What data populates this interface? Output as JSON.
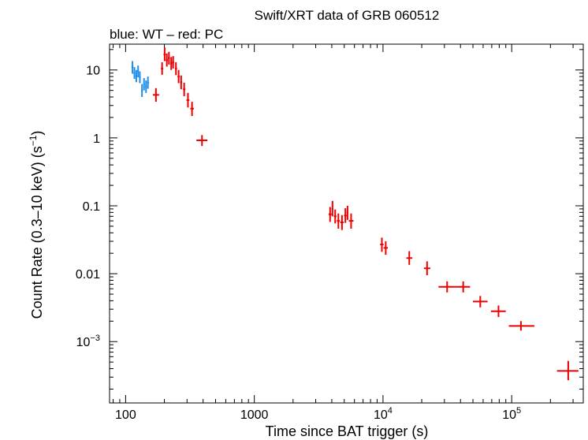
{
  "chart_data": {
    "type": "scatter",
    "title": "Swift/XRT data of GRB 060512",
    "subtitle": "blue: WT – red: PC",
    "xlabel": "Time since BAT trigger (s)",
    "ylabel": "Count Rate (0.3–10 keV) (s",
    "ylabel_sup": "−1",
    "ylabel_end": ")",
    "xscale": "log",
    "yscale": "log",
    "xlim": [
      75,
      360000
    ],
    "ylim": [
      0.000125,
      24
    ],
    "x_ticks": [
      {
        "value": 100,
        "label": "100"
      },
      {
        "value": 1000,
        "label": "1000"
      },
      {
        "value": 10000,
        "base": "10",
        "exp": "4"
      },
      {
        "value": 100000,
        "base": "10",
        "exp": "5"
      }
    ],
    "y_ticks": [
      {
        "value": 10,
        "label": "10"
      },
      {
        "value": 1,
        "label": "1"
      },
      {
        "value": 0.1,
        "label": "0.1"
      },
      {
        "value": 0.01,
        "label": "0.01"
      },
      {
        "value": 0.001,
        "base": "10",
        "exp": "−3"
      }
    ],
    "colors": {
      "WT": "#1f8fea",
      "PC": "#ee0000",
      "axes": "#000000"
    },
    "series": [
      {
        "name": "WT",
        "points": [
          {
            "x": 113,
            "xlo": 111,
            "xhi": 115,
            "y": 11.0,
            "ylo": 8.8,
            "yhi": 13.5
          },
          {
            "x": 117,
            "xlo": 115,
            "xhi": 119,
            "y": 9.0,
            "ylo": 7.4,
            "yhi": 11.0
          },
          {
            "x": 121,
            "xlo": 119,
            "xhi": 123,
            "y": 8.2,
            "ylo": 6.6,
            "yhi": 10.0
          },
          {
            "x": 125,
            "xlo": 123,
            "xhi": 127,
            "y": 9.6,
            "ylo": 7.8,
            "yhi": 11.6
          },
          {
            "x": 129,
            "xlo": 127,
            "xhi": 131,
            "y": 7.8,
            "ylo": 6.4,
            "yhi": 9.5
          },
          {
            "x": 134,
            "xlo": 132,
            "xhi": 136,
            "y": 5.0,
            "ylo": 4.0,
            "yhi": 6.2
          },
          {
            "x": 139,
            "xlo": 137,
            "xhi": 141,
            "y": 6.2,
            "ylo": 5.0,
            "yhi": 7.6
          },
          {
            "x": 144,
            "xlo": 142,
            "xhi": 146,
            "y": 5.7,
            "ylo": 4.6,
            "yhi": 7.0
          },
          {
            "x": 149,
            "xlo": 147,
            "xhi": 152,
            "y": 6.5,
            "ylo": 5.3,
            "yhi": 8.0
          }
        ]
      },
      {
        "name": "PC",
        "points": [
          {
            "x": 172,
            "xlo": 163,
            "xhi": 182,
            "y": 4.3,
            "ylo": 3.4,
            "yhi": 5.4
          },
          {
            "x": 192,
            "xlo": 188,
            "xhi": 196,
            "y": 10.5,
            "ylo": 8.5,
            "yhi": 13.0
          },
          {
            "x": 201,
            "xlo": 197,
            "xhi": 205,
            "y": 17.0,
            "ylo": 13.5,
            "yhi": 21.5
          },
          {
            "x": 209,
            "xlo": 205,
            "xhi": 213,
            "y": 14.0,
            "ylo": 11.2,
            "yhi": 17.5
          },
          {
            "x": 217,
            "xlo": 213,
            "xhi": 221,
            "y": 15.0,
            "ylo": 12.0,
            "yhi": 18.5
          },
          {
            "x": 226,
            "xlo": 222,
            "xhi": 230,
            "y": 12.5,
            "ylo": 10.0,
            "yhi": 15.5
          },
          {
            "x": 234,
            "xlo": 230,
            "xhi": 238,
            "y": 13.0,
            "ylo": 10.5,
            "yhi": 16.0
          },
          {
            "x": 246,
            "xlo": 242,
            "xhi": 251,
            "y": 10.5,
            "ylo": 8.4,
            "yhi": 13.0
          },
          {
            "x": 258,
            "xlo": 253,
            "xhi": 263,
            "y": 8.0,
            "ylo": 6.4,
            "yhi": 10.0
          },
          {
            "x": 270,
            "xlo": 265,
            "xhi": 275,
            "y": 6.6,
            "ylo": 5.2,
            "yhi": 8.3
          },
          {
            "x": 285,
            "xlo": 279,
            "xhi": 291,
            "y": 5.2,
            "ylo": 4.1,
            "yhi": 6.5
          },
          {
            "x": 305,
            "xlo": 297,
            "xhi": 313,
            "y": 3.6,
            "ylo": 2.8,
            "yhi": 4.6
          },
          {
            "x": 328,
            "xlo": 318,
            "xhi": 339,
            "y": 2.7,
            "ylo": 2.1,
            "yhi": 3.4
          },
          {
            "x": 392,
            "xlo": 355,
            "xhi": 432,
            "y": 0.92,
            "ylo": 0.76,
            "yhi": 1.1
          },
          {
            "x": 3880,
            "xlo": 3780,
            "xhi": 3990,
            "y": 0.075,
            "ylo": 0.058,
            "yhi": 0.096
          },
          {
            "x": 4050,
            "xlo": 3990,
            "xhi": 4110,
            "y": 0.09,
            "ylo": 0.07,
            "yhi": 0.118
          },
          {
            "x": 4250,
            "xlo": 4150,
            "xhi": 4350,
            "y": 0.07,
            "ylo": 0.055,
            "yhi": 0.088
          },
          {
            "x": 4500,
            "xlo": 4380,
            "xhi": 4620,
            "y": 0.06,
            "ylo": 0.046,
            "yhi": 0.077
          },
          {
            "x": 4800,
            "xlo": 4650,
            "xhi": 4950,
            "y": 0.057,
            "ylo": 0.044,
            "yhi": 0.073
          },
          {
            "x": 5100,
            "xlo": 4980,
            "xhi": 5220,
            "y": 0.072,
            "ylo": 0.056,
            "yhi": 0.092
          },
          {
            "x": 5300,
            "xlo": 5220,
            "xhi": 5380,
            "y": 0.08,
            "ylo": 0.062,
            "yhi": 0.1
          },
          {
            "x": 5650,
            "xlo": 5420,
            "xhi": 5900,
            "y": 0.06,
            "ylo": 0.046,
            "yhi": 0.077
          },
          {
            "x": 9800,
            "xlo": 9500,
            "xhi": 10100,
            "y": 0.027,
            "ylo": 0.021,
            "yhi": 0.034
          },
          {
            "x": 10500,
            "xlo": 10100,
            "xhi": 10900,
            "y": 0.024,
            "ylo": 0.019,
            "yhi": 0.03
          },
          {
            "x": 16000,
            "xlo": 15200,
            "xhi": 16900,
            "y": 0.017,
            "ylo": 0.0135,
            "yhi": 0.0215
          },
          {
            "x": 22000,
            "xlo": 20800,
            "xhi": 23300,
            "y": 0.012,
            "ylo": 0.0095,
            "yhi": 0.0152
          },
          {
            "x": 31500,
            "xlo": 27000,
            "xhi": 36500,
            "y": 0.0064,
            "ylo": 0.0053,
            "yhi": 0.0077
          },
          {
            "x": 42000,
            "xlo": 36500,
            "xhi": 47500,
            "y": 0.0064,
            "ylo": 0.0053,
            "yhi": 0.0077
          },
          {
            "x": 57000,
            "xlo": 50000,
            "xhi": 65000,
            "y": 0.0039,
            "ylo": 0.0032,
            "yhi": 0.0047
          },
          {
            "x": 79000,
            "xlo": 69000,
            "xhi": 90000,
            "y": 0.0028,
            "ylo": 0.0023,
            "yhi": 0.0034
          },
          {
            "x": 118000,
            "xlo": 95000,
            "xhi": 150000,
            "y": 0.0017,
            "ylo": 0.00145,
            "yhi": 0.002
          },
          {
            "x": 275000,
            "xlo": 225000,
            "xhi": 330000,
            "y": 0.00037,
            "ylo": 0.00027,
            "yhi": 0.00052
          }
        ]
      }
    ]
  }
}
